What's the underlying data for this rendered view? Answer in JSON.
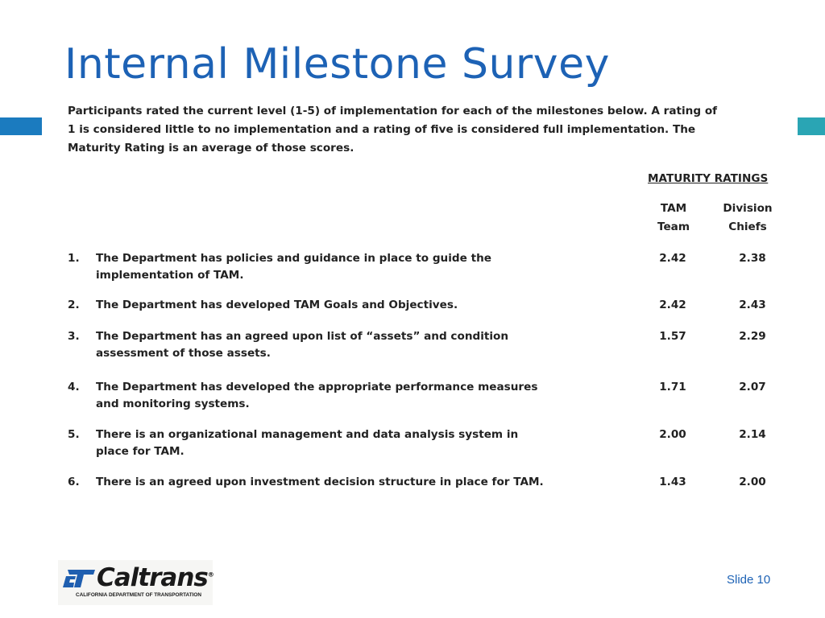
{
  "slide": {
    "title": "Internal Milestone Survey",
    "number_label": "Slide 10"
  },
  "intro": [
    "Participants rated the current level (1-5) of implementation for each of the milestones below.  A rating of",
    "1 is considered little to no implementation and a rating of five is considered full implementation.  The",
    "Maturity Rating is an average of those scores."
  ],
  "table": {
    "group_header": "MATURITY RATINGS",
    "columns": [
      {
        "line1": "TAM",
        "line2": "Team"
      },
      {
        "line1": "Division",
        "line2": "Chiefs"
      }
    ],
    "rows": [
      {
        "num": "1.",
        "text": [
          "The Department has policies and guidance in place to guide the",
          "implementation of TAM."
        ],
        "tam": "2.42",
        "division": "2.38"
      },
      {
        "num": "2.",
        "text": [
          "The Department has developed TAM Goals and Objectives."
        ],
        "tam": "2.42",
        "division": "2.43"
      },
      {
        "num": "3.",
        "text": [
          "The Department has an agreed upon list of “assets” and condition",
          "assessment of  those assets."
        ],
        "tam": "1.57",
        "division": "2.29"
      },
      {
        "num": "4.",
        "text": [
          "The Department has developed the appropriate performance measures",
          "and monitoring systems."
        ],
        "tam": "1.71",
        "division": "2.07"
      },
      {
        "num": "5.",
        "text": [
          "There is an organizational management and data analysis system in",
          "place for TAM."
        ],
        "tam": "2.00",
        "division": "2.14"
      },
      {
        "num": "6.",
        "text": [
          "There is an agreed upon investment decision structure in place for TAM."
        ],
        "tam": "1.43",
        "division": "2.00"
      }
    ]
  },
  "logo": {
    "wordmark": "Caltrans",
    "trademark": "®",
    "subtitle": "CALIFORNIA DEPARTMENT OF TRANSPORTATION",
    "icon": "caltrans-ct-icon"
  },
  "colors": {
    "title": "#1d62b5",
    "accent_left": "#1b7bbf",
    "accent_right": "#2aa5b4",
    "logo_mark": "#1f5fb0"
  }
}
